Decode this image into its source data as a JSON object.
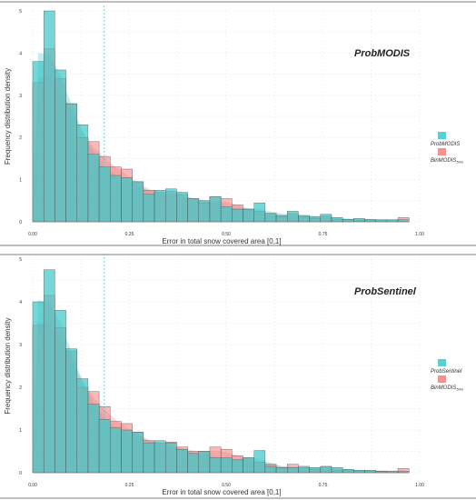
{
  "chart_data": [
    {
      "type": "bar",
      "title": "ProbMODIS",
      "xlabel": "Error in total snow covered area [0,1]",
      "ylabel": "Frequency distribution density",
      "xlim": [
        0,
        1
      ],
      "ylim": [
        0,
        5
      ],
      "xticks": [
        "0.00",
        "0.25",
        "0.50",
        "0.75",
        "1.00"
      ],
      "yticks": [
        "0",
        "1",
        "2",
        "3",
        "4",
        "5"
      ],
      "grid": true,
      "legend_position": "right",
      "vline": 0.185,
      "bin_width": 0.0286,
      "series": [
        {
          "name": "ProbMODIS",
          "color": "#40c8c8",
          "values": [
            3.8,
            5.0,
            3.6,
            2.8,
            2.3,
            1.6,
            1.3,
            1.1,
            1.05,
            0.95,
            0.65,
            0.75,
            0.78,
            0.7,
            0.55,
            0.5,
            0.6,
            0.35,
            0.3,
            0.3,
            0.45,
            0.2,
            0.15,
            0.25,
            0.15,
            0.12,
            0.18,
            0.1,
            0.06,
            0.08,
            0.06,
            0.05,
            0.05,
            0.05
          ]
        },
        {
          "name": "BinMODIS",
          "name_subscript": "50m",
          "color": "#f08080",
          "values": [
            3.3,
            4.1,
            3.4,
            2.8,
            2.0,
            1.9,
            1.55,
            1.3,
            1.25,
            0.95,
            0.75,
            0.7,
            0.72,
            0.65,
            0.55,
            0.45,
            0.6,
            0.55,
            0.4,
            0.3,
            0.25,
            0.2,
            0.12,
            0.2,
            0.12,
            0.08,
            0.14,
            0.06,
            0.05,
            0.04,
            0.04,
            0.04,
            0.03,
            0.1
          ]
        }
      ]
    },
    {
      "type": "bar",
      "title": "ProbSentinel",
      "xlabel": "Error in total snow covered area [0,1]",
      "ylabel": "Frequency distribution density",
      "xlim": [
        0,
        1
      ],
      "ylim": [
        0,
        5
      ],
      "xticks": [
        "0.00",
        "0.25",
        "0.50",
        "0.75",
        "1.00"
      ],
      "yticks": [
        "0",
        "1",
        "2",
        "3",
        "4",
        "5"
      ],
      "grid": true,
      "legend_position": "right",
      "vline": 0.185,
      "bin_width": 0.0286,
      "series": [
        {
          "name": "ProbSentinel",
          "color": "#40c8c8",
          "values": [
            4.0,
            4.75,
            3.8,
            2.9,
            2.2,
            1.6,
            1.25,
            1.05,
            1.0,
            0.95,
            0.7,
            0.75,
            0.7,
            0.55,
            0.45,
            0.5,
            0.35,
            0.35,
            0.3,
            0.35,
            0.52,
            0.15,
            0.12,
            0.12,
            0.15,
            0.12,
            0.15,
            0.12,
            0.08,
            0.06,
            0.06,
            0.03,
            0.03,
            0.03
          ]
        },
        {
          "name": "BinMODIS",
          "name_subscript": "50m",
          "color": "#f08080",
          "values": [
            3.45,
            4.15,
            3.4,
            2.85,
            2.0,
            1.9,
            1.55,
            1.2,
            1.15,
            0.95,
            0.75,
            0.7,
            0.72,
            0.6,
            0.5,
            0.5,
            0.6,
            0.55,
            0.4,
            0.35,
            0.25,
            0.2,
            0.12,
            0.2,
            0.12,
            0.08,
            0.14,
            0.06,
            0.05,
            0.04,
            0.04,
            0.04,
            0.03,
            0.1
          ]
        }
      ]
    }
  ]
}
